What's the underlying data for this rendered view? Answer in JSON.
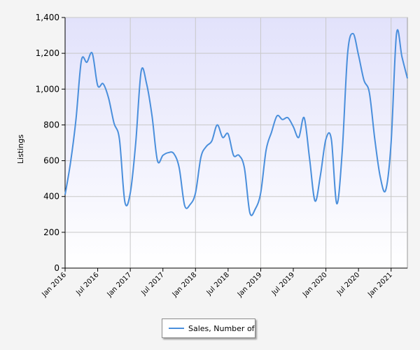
{
  "chart_data": {
    "type": "line",
    "title": "",
    "xlabel": "",
    "ylabel": "Listings",
    "ylim": [
      0,
      1400
    ],
    "yticks": [
      0,
      200,
      400,
      600,
      800,
      1000,
      1200,
      1400
    ],
    "ytick_labels": [
      "0",
      "200",
      "400",
      "600",
      "800",
      "1,000",
      "1,200",
      "1,400"
    ],
    "xtick_labels": [
      "Jan 2016",
      "Jul 2016",
      "Jan 2017",
      "Jul 2017",
      "Jan 2018",
      "Jul 2018",
      "Jan 2019",
      "Jul 2019",
      "Jan 2020",
      "Jul 2020",
      "Jan 2021"
    ],
    "xticks": [
      "2016-01",
      "2016-07",
      "2017-01",
      "2017-07",
      "2018-01",
      "2018-07",
      "2019-01",
      "2019-07",
      "2020-01",
      "2020-07",
      "2021-01"
    ],
    "grid": true,
    "legend_position": "bottom-center",
    "x": [
      "2016-01",
      "2016-02",
      "2016-03",
      "2016-04",
      "2016-05",
      "2016-06",
      "2016-07",
      "2016-08",
      "2016-09",
      "2016-10",
      "2016-11",
      "2016-12",
      "2017-01",
      "2017-02",
      "2017-03",
      "2017-04",
      "2017-05",
      "2017-06",
      "2017-07",
      "2017-08",
      "2017-09",
      "2017-10",
      "2017-11",
      "2017-12",
      "2018-01",
      "2018-02",
      "2018-03",
      "2018-04",
      "2018-05",
      "2018-06",
      "2018-07",
      "2018-08",
      "2018-09",
      "2018-10",
      "2018-11",
      "2018-12",
      "2019-01",
      "2019-02",
      "2019-03",
      "2019-04",
      "2019-05",
      "2019-06",
      "2019-07",
      "2019-08",
      "2019-09",
      "2019-10",
      "2019-11",
      "2019-12",
      "2020-01",
      "2020-02",
      "2020-03",
      "2020-04",
      "2020-05",
      "2020-06",
      "2020-07",
      "2020-08",
      "2020-09",
      "2020-10",
      "2020-11",
      "2020-12",
      "2021-01",
      "2021-02",
      "2021-03",
      "2021-04"
    ],
    "series": [
      {
        "name": "Sales, Number of",
        "color": "#4a8fdc",
        "values": [
          410,
          590,
          830,
          1160,
          1150,
          1200,
          1020,
          1030,
          950,
          810,
          720,
          370,
          420,
          700,
          1100,
          1030,
          850,
          600,
          630,
          645,
          640,
          560,
          350,
          355,
          420,
          620,
          680,
          710,
          800,
          730,
          750,
          630,
          630,
          560,
          310,
          330,
          420,
          660,
          760,
          850,
          830,
          840,
          790,
          730,
          840,
          610,
          375,
          520,
          720,
          720,
          360,
          650,
          1200,
          1310,
          1190,
          1050,
          980,
          720,
          510,
          435,
          700,
          1310,
          1180,
          1060
        ]
      }
    ]
  }
}
